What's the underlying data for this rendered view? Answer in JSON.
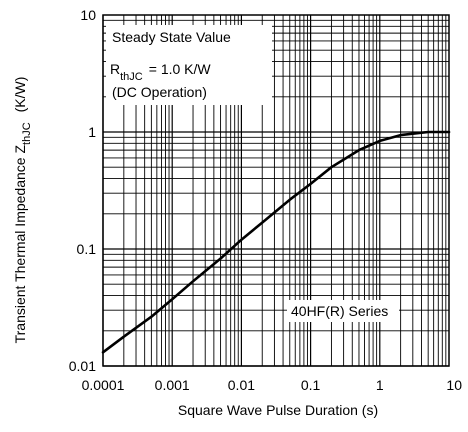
{
  "chart_data": {
    "type": "line",
    "xscale": "log",
    "yscale": "log",
    "xlim": [
      0.0001,
      10
    ],
    "ylim": [
      0.01,
      10
    ],
    "grid": true,
    "xlabel": "Square Wave Pulse Duration (s)",
    "ylabel": {
      "main": "Transient Thermal Impedance Z",
      "sub": "thJC",
      "unit": "(K/W)"
    },
    "x_ticks": [
      {
        "value": 0.0001,
        "label": "0.0001"
      },
      {
        "value": 0.001,
        "label": "0.001"
      },
      {
        "value": 0.01,
        "label": "0.01"
      },
      {
        "value": 0.1,
        "label": "0.1"
      },
      {
        "value": 1,
        "label": "1"
      },
      {
        "value": 10,
        "label": "10"
      }
    ],
    "y_ticks": [
      {
        "value": 10,
        "label": "10"
      },
      {
        "value": 1,
        "label": "1"
      },
      {
        "value": 0.1,
        "label": "0.1"
      },
      {
        "value": 0.01,
        "label": "0.01"
      }
    ],
    "annotation": {
      "line1": "Steady State Value",
      "r_main": "R",
      "r_sub": "thJC",
      "r_value": "= 1.0 K/W",
      "line3": "(DC Operation)"
    },
    "series_label": "40HF(R) Series",
    "series": [
      {
        "x": [
          0.0001,
          0.0002,
          0.0005,
          0.001,
          0.002,
          0.005,
          0.01,
          0.02,
          0.05,
          0.1,
          0.2,
          0.5,
          1,
          2,
          5,
          10
        ],
        "y": [
          0.0131,
          0.0178,
          0.0264,
          0.0372,
          0.053,
          0.083,
          0.12,
          0.168,
          0.264,
          0.36,
          0.5,
          0.7,
          0.84,
          0.94,
          1.0,
          1.0
        ]
      }
    ]
  }
}
